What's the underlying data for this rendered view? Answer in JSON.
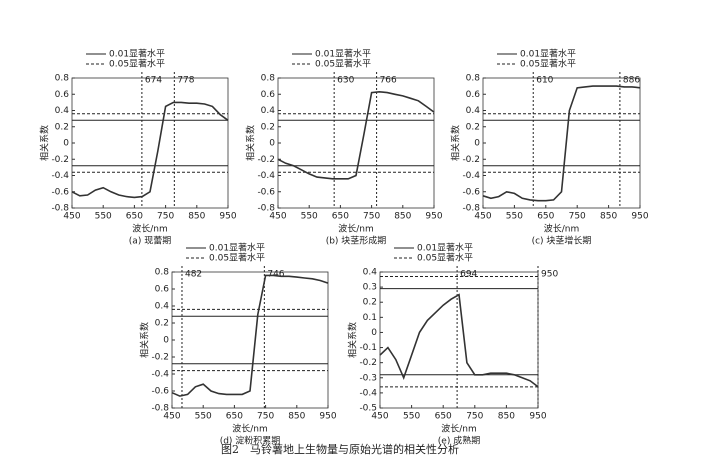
{
  "figure_caption": "图2　马铃薯地上生物量与原始光谱的相关性分析",
  "chart_data": [
    {
      "type": "line",
      "subtitle": "(a) 现蕾期",
      "x_label": "波长/nm",
      "y_label": "相关系数",
      "color": "#333333",
      "x": [
        450,
        475,
        500,
        525,
        550,
        575,
        600,
        625,
        650,
        675,
        700,
        725,
        750,
        775,
        800,
        825,
        850,
        875,
        900,
        925,
        950
      ],
      "values": [
        -0.6,
        -0.65,
        -0.64,
        -0.58,
        -0.55,
        -0.6,
        -0.64,
        -0.66,
        -0.67,
        -0.66,
        -0.6,
        -0.1,
        0.45,
        0.5,
        0.5,
        0.49,
        0.49,
        0.48,
        0.45,
        0.35,
        0.28
      ],
      "xlim": [
        450,
        950
      ],
      "xticks": [
        450,
        550,
        650,
        750,
        850,
        950
      ],
      "ylim": [
        -0.8,
        0.8
      ],
      "yticks": [
        -0.8,
        -0.6,
        -0.4,
        -0.2,
        0,
        0.2,
        0.4,
        0.6,
        0.8
      ],
      "thresholds": [
        {
          "name": "0.01显著水平",
          "dashed": false,
          "values": [
            0.28,
            -0.28
          ]
        },
        {
          "name": "0.05显著水平",
          "dashed": true,
          "values": [
            0.36,
            -0.36
          ]
        }
      ],
      "vlines": [
        674,
        778
      ]
    },
    {
      "type": "line",
      "subtitle": "(b) 块茎形成期",
      "x_label": "波长/nm",
      "y_label": "相关系数",
      "color": "#333333",
      "x": [
        450,
        475,
        500,
        525,
        550,
        575,
        600,
        625,
        650,
        675,
        700,
        725,
        750,
        775,
        800,
        825,
        850,
        875,
        900,
        925,
        950
      ],
      "values": [
        -0.2,
        -0.25,
        -0.28,
        -0.33,
        -0.38,
        -0.42,
        -0.43,
        -0.44,
        -0.44,
        -0.44,
        -0.4,
        0.1,
        0.62,
        0.63,
        0.62,
        0.6,
        0.58,
        0.55,
        0.52,
        0.45,
        0.38
      ],
      "xlim": [
        450,
        950
      ],
      "xticks": [
        450,
        550,
        650,
        750,
        850,
        950
      ],
      "ylim": [
        -0.8,
        0.8
      ],
      "yticks": [
        -0.8,
        -0.6,
        -0.4,
        -0.2,
        0,
        0.2,
        0.4,
        0.6,
        0.8
      ],
      "thresholds": [
        {
          "name": "0.01显著水平",
          "dashed": false,
          "values": [
            0.28,
            -0.28
          ]
        },
        {
          "name": "0.05显著水平",
          "dashed": true,
          "values": [
            0.36,
            -0.36
          ]
        }
      ],
      "vlines": [
        630,
        766
      ]
    },
    {
      "type": "line",
      "subtitle": "(c) 块茎增长期",
      "x_label": "波长/nm",
      "y_label": "相关系数",
      "color": "#333333",
      "x": [
        450,
        475,
        500,
        525,
        550,
        575,
        600,
        625,
        650,
        675,
        700,
        725,
        750,
        775,
        800,
        825,
        850,
        875,
        900,
        925,
        950
      ],
      "values": [
        -0.65,
        -0.68,
        -0.66,
        -0.6,
        -0.62,
        -0.68,
        -0.7,
        -0.71,
        -0.71,
        -0.7,
        -0.6,
        0.4,
        0.68,
        0.69,
        0.7,
        0.7,
        0.7,
        0.7,
        0.69,
        0.69,
        0.68
      ],
      "xlim": [
        450,
        950
      ],
      "xticks": [
        450,
        550,
        650,
        750,
        850,
        950
      ],
      "ylim": [
        -0.8,
        0.8
      ],
      "yticks": [
        -0.8,
        -0.6,
        -0.4,
        -0.2,
        0,
        0.2,
        0.4,
        0.6,
        0.8
      ],
      "thresholds": [
        {
          "name": "0.01显著水平",
          "dashed": false,
          "values": [
            0.28,
            -0.28
          ]
        },
        {
          "name": "0.05显著水平",
          "dashed": true,
          "values": [
            0.36,
            -0.36
          ]
        }
      ],
      "vlines": [
        610,
        886
      ]
    },
    {
      "type": "line",
      "subtitle": "(d) 淀粉积累期",
      "x_label": "波长/nm",
      "y_label": "相关系数",
      "color": "#333333",
      "x": [
        450,
        475,
        500,
        525,
        550,
        575,
        600,
        625,
        650,
        675,
        700,
        725,
        750,
        775,
        800,
        825,
        850,
        875,
        900,
        925,
        950
      ],
      "values": [
        -0.62,
        -0.66,
        -0.64,
        -0.55,
        -0.52,
        -0.6,
        -0.63,
        -0.64,
        -0.64,
        -0.64,
        -0.6,
        0.3,
        0.76,
        0.76,
        0.75,
        0.75,
        0.74,
        0.73,
        0.72,
        0.7,
        0.67
      ],
      "xlim": [
        450,
        950
      ],
      "xticks": [
        450,
        550,
        650,
        750,
        850,
        950
      ],
      "ylim": [
        -0.8,
        0.8
      ],
      "yticks": [
        -0.8,
        -0.6,
        -0.4,
        -0.2,
        0,
        0.2,
        0.4,
        0.6,
        0.8
      ],
      "thresholds": [
        {
          "name": "0.01显著水平",
          "dashed": false,
          "values": [
            0.28,
            -0.28
          ]
        },
        {
          "name": "0.05显著水平",
          "dashed": true,
          "values": [
            0.36,
            -0.36
          ]
        }
      ],
      "vlines": [
        482,
        746
      ]
    },
    {
      "type": "line",
      "subtitle": "(e) 成熟期",
      "x_label": "波长/nm",
      "y_label": "相关系数",
      "color": "#333333",
      "x": [
        450,
        475,
        500,
        525,
        550,
        575,
        600,
        625,
        650,
        675,
        700,
        725,
        750,
        775,
        800,
        825,
        850,
        875,
        900,
        925,
        950
      ],
      "values": [
        -0.15,
        -0.1,
        -0.18,
        -0.3,
        -0.15,
        0,
        0.08,
        0.13,
        0.18,
        0.22,
        0.25,
        -0.2,
        -0.28,
        -0.28,
        -0.27,
        -0.27,
        -0.27,
        -0.28,
        -0.3,
        -0.32,
        -0.36
      ],
      "xlim": [
        450,
        950
      ],
      "xticks": [
        450,
        550,
        650,
        750,
        850,
        950
      ],
      "ylim": [
        -0.5,
        0.4
      ],
      "yticks": [
        -0.5,
        -0.4,
        -0.3,
        -0.2,
        -0.1,
        0,
        0.1,
        0.2,
        0.3,
        0.4
      ],
      "thresholds": [
        {
          "name": "0.01显著水平",
          "dashed": false,
          "values": [
            0.29,
            -0.28
          ]
        },
        {
          "name": "0.05显著水平",
          "dashed": true,
          "values": [
            0.37,
            -0.36
          ]
        }
      ],
      "vlines": [
        694,
        950
      ]
    }
  ]
}
